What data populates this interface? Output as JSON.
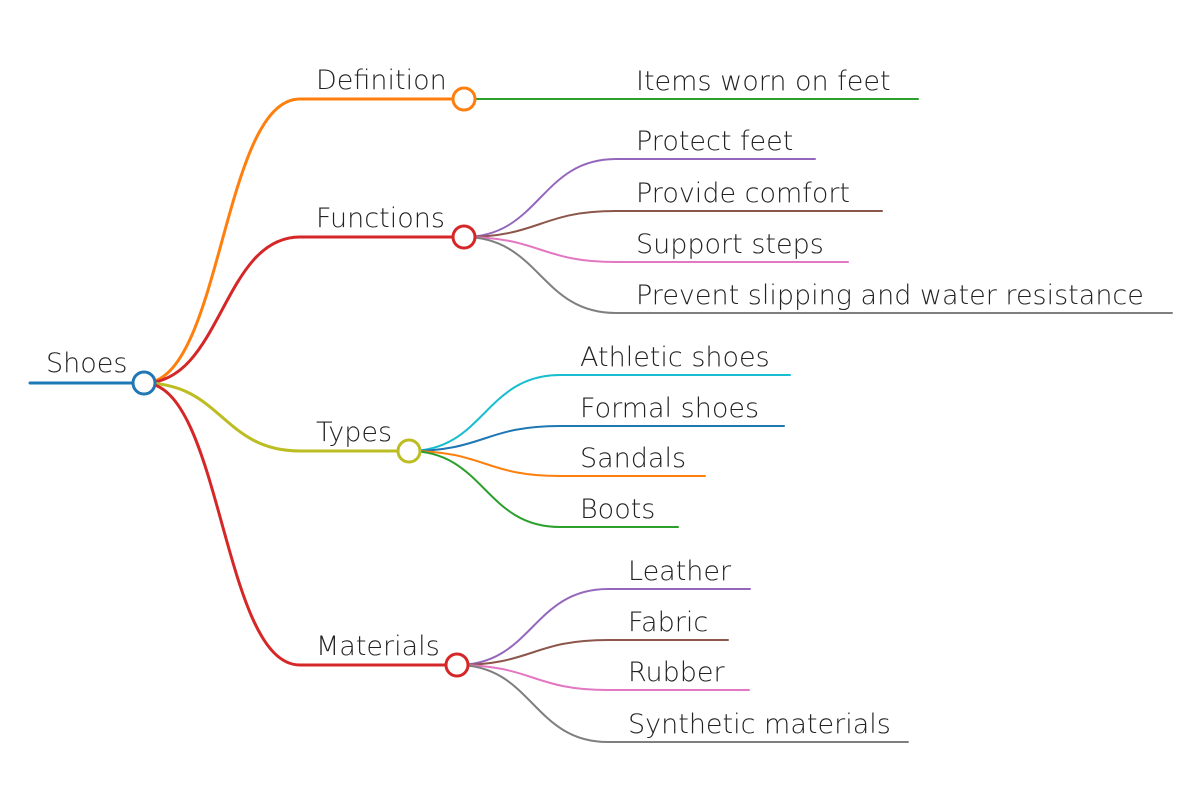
{
  "root": {
    "label": "Shoes",
    "color": "#1f77b4"
  },
  "branches": [
    {
      "label": "Definition",
      "color": "#ff7f0e",
      "children": [
        {
          "label": "Items worn on feet",
          "color": "#2ca02c"
        }
      ]
    },
    {
      "label": "Functions",
      "color": "#d62728",
      "children": [
        {
          "label": "Protect feet",
          "color": "#9467bd"
        },
        {
          "label": "Provide comfort",
          "color": "#8c564b"
        },
        {
          "label": "Support steps",
          "color": "#e377c2"
        },
        {
          "label": "Prevent slipping and water resistance",
          "color": "#7f7f7f"
        }
      ]
    },
    {
      "label": "Types",
      "color": "#bcbd22",
      "children": [
        {
          "label": "Athletic shoes",
          "color": "#17becf"
        },
        {
          "label": "Formal shoes",
          "color": "#1f77b4"
        },
        {
          "label": "Sandals",
          "color": "#ff7f0e"
        },
        {
          "label": "Boots",
          "color": "#2ca02c"
        }
      ]
    },
    {
      "label": "Materials",
      "color": "#d62728",
      "children": [
        {
          "label": "Leather",
          "color": "#9467bd"
        },
        {
          "label": "Fabric",
          "color": "#8c564b"
        },
        {
          "label": "Rubber",
          "color": "#e377c2"
        },
        {
          "label": "Synthetic materials",
          "color": "#7f7f7f"
        }
      ]
    }
  ]
}
